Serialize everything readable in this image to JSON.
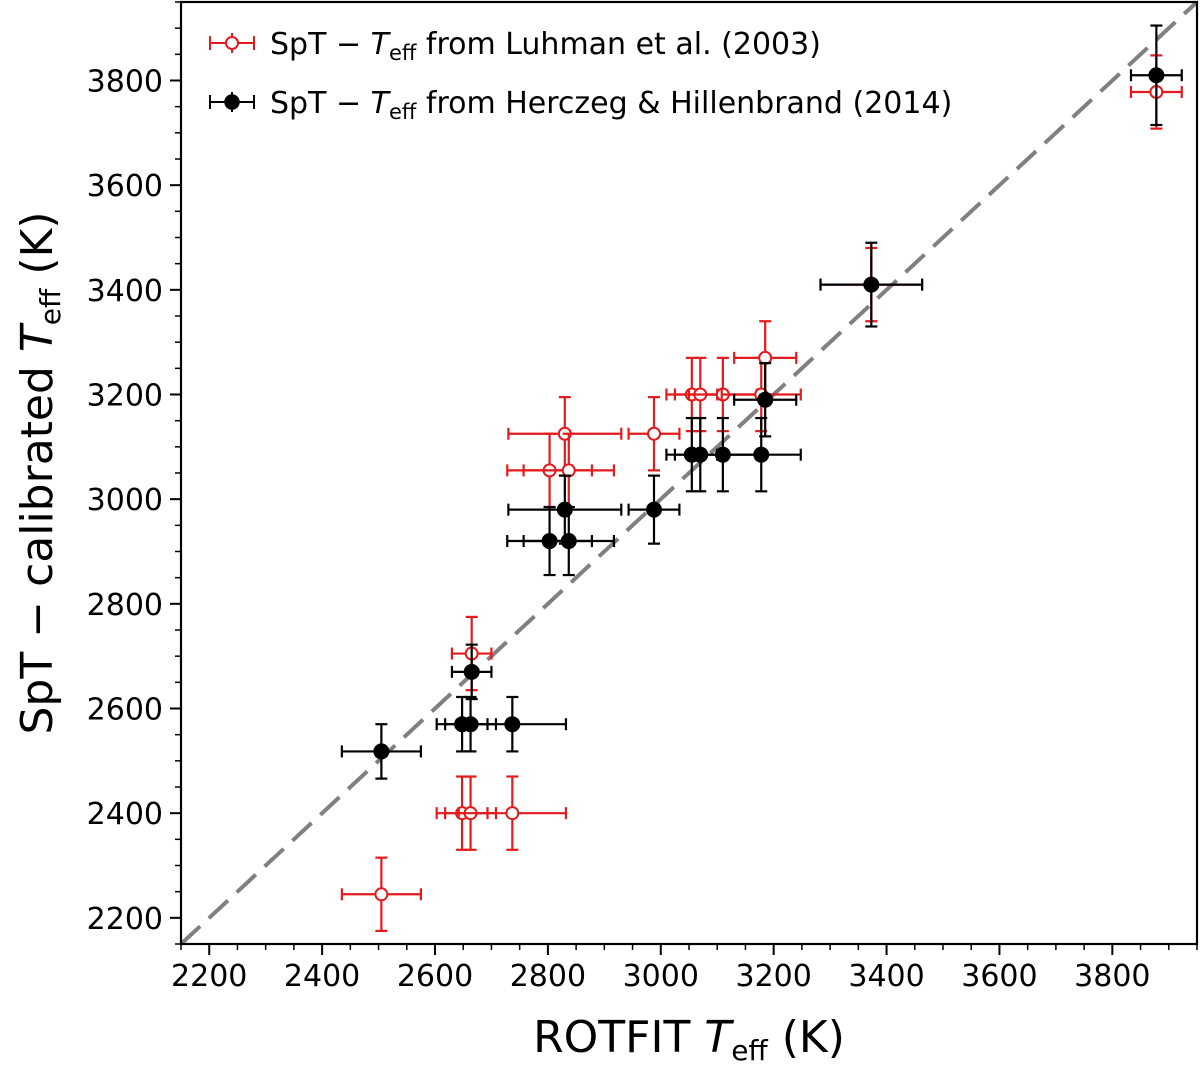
{
  "chart_data": {
    "type": "scatter",
    "xlabel": "ROTFIT T_eff (K)",
    "ylabel": "SpT − calibrated T_eff (K)",
    "xlim": [
      2150,
      3950
    ],
    "ylim": [
      2150,
      3950
    ],
    "x_ticks": [
      "2200",
      "2400",
      "2600",
      "2800",
      "3000",
      "3200",
      "3400",
      "3600",
      "3800"
    ],
    "y_ticks": [
      "2200",
      "2400",
      "2600",
      "2800",
      "3000",
      "3200",
      "3400",
      "3600",
      "3800"
    ],
    "grid": false,
    "legend_position": "top-left",
    "reference_line": {
      "style": "dashed",
      "color": "#808080",
      "from": [
        2150,
        2150
      ],
      "to": [
        3950,
        3950
      ]
    },
    "series": [
      {
        "name": "SpT − T_eff from Luhman et al. (2003)",
        "color": "#e41a1c",
        "marker": "open-circle",
        "points": [
          {
            "x": 2505,
            "y": 2245,
            "xerr": 70,
            "yerr": 70
          },
          {
            "x": 2648,
            "y": 2400,
            "xerr": 45,
            "yerr": 70
          },
          {
            "x": 2663,
            "y": 2400,
            "xerr": 45,
            "yerr": 70
          },
          {
            "x": 2737,
            "y": 2400,
            "xerr": 95,
            "yerr": 70
          },
          {
            "x": 2665,
            "y": 2705,
            "xerr": 35,
            "yerr": 70
          },
          {
            "x": 2803,
            "y": 3055,
            "xerr": 75,
            "yerr": 70
          },
          {
            "x": 2830,
            "y": 3125,
            "xerr": 100,
            "yerr": 70
          },
          {
            "x": 2837,
            "y": 3055,
            "xerr": 80,
            "yerr": 70
          },
          {
            "x": 2988,
            "y": 3125,
            "xerr": 45,
            "yerr": 70
          },
          {
            "x": 3055,
            "y": 3200,
            "xerr": 45,
            "yerr": 70
          },
          {
            "x": 3070,
            "y": 3200,
            "xerr": 45,
            "yerr": 70
          },
          {
            "x": 3110,
            "y": 3200,
            "xerr": 60,
            "yerr": 70
          },
          {
            "x": 3178,
            "y": 3200,
            "xerr": 70,
            "yerr": 70
          },
          {
            "x": 3185,
            "y": 3270,
            "xerr": 55,
            "yerr": 70
          },
          {
            "x": 3373,
            "y": 3410,
            "xerr": 90,
            "yerr": 70
          },
          {
            "x": 3878,
            "y": 3778,
            "xerr": 45,
            "yerr": 70
          }
        ]
      },
      {
        "name": "SpT − T_eff from Herczeg & Hillenbrand (2014)",
        "color": "#000000",
        "marker": "filled-circle",
        "points": [
          {
            "x": 2505,
            "y": 2518,
            "xerr": 70,
            "yerr": 52
          },
          {
            "x": 2648,
            "y": 2570,
            "xerr": 45,
            "yerr": 52
          },
          {
            "x": 2663,
            "y": 2570,
            "xerr": 45,
            "yerr": 52
          },
          {
            "x": 2737,
            "y": 2570,
            "xerr": 95,
            "yerr": 52
          },
          {
            "x": 2665,
            "y": 2670,
            "xerr": 35,
            "yerr": 52
          },
          {
            "x": 2803,
            "y": 2920,
            "xerr": 75,
            "yerr": 65
          },
          {
            "x": 2830,
            "y": 2980,
            "xerr": 100,
            "yerr": 65
          },
          {
            "x": 2837,
            "y": 2920,
            "xerr": 80,
            "yerr": 65
          },
          {
            "x": 2988,
            "y": 2980,
            "xerr": 45,
            "yerr": 65
          },
          {
            "x": 3055,
            "y": 3085,
            "xerr": 45,
            "yerr": 70
          },
          {
            "x": 3070,
            "y": 3085,
            "xerr": 45,
            "yerr": 70
          },
          {
            "x": 3110,
            "y": 3085,
            "xerr": 60,
            "yerr": 70
          },
          {
            "x": 3178,
            "y": 3085,
            "xerr": 70,
            "yerr": 70
          },
          {
            "x": 3185,
            "y": 3190,
            "xerr": 55,
            "yerr": 70
          },
          {
            "x": 3373,
            "y": 3410,
            "xerr": 90,
            "yerr": 80
          },
          {
            "x": 3878,
            "y": 3810,
            "xerr": 45,
            "yerr": 95
          }
        ]
      }
    ]
  },
  "legend": {
    "entries": [
      {
        "pre": "SpT − ",
        "sym": "T",
        "sub": "eff",
        "post": " from Luhman et al. (2003)"
      },
      {
        "pre": "SpT − ",
        "sym": "T",
        "sub": "eff",
        "post": " from Herczeg & Hillenbrand (2014)"
      }
    ]
  },
  "axis_titles": {
    "x": {
      "pre": "ROTFIT ",
      "sym": "T",
      "sub": "eff",
      "post": " (K)"
    },
    "y": {
      "pre": "SpT − calibrated ",
      "sym": "T",
      "sub": "eff",
      "post": " (K)"
    }
  }
}
